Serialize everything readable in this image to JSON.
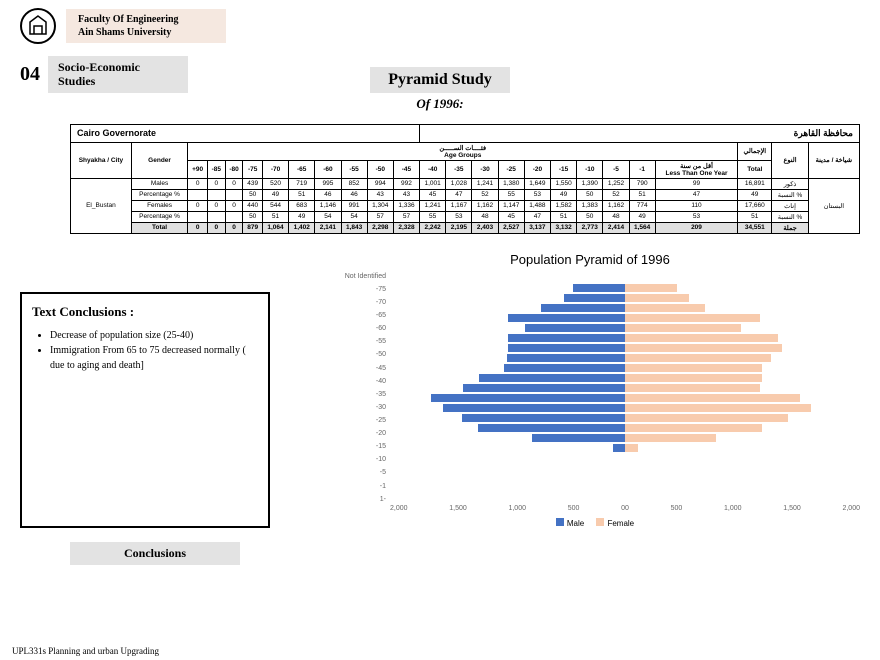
{
  "header": {
    "line1": "Faculty Of Engineering",
    "line2": "Ain Shams University"
  },
  "section": {
    "num": "04",
    "title1": "Socio-Economic",
    "title2": "Studies"
  },
  "main": {
    "title": "Pyramid Study",
    "subtitle": "Of 1996:"
  },
  "table": {
    "gov_en": "Cairo Governorate",
    "gov_ar": "محافظة القاهرة",
    "h_shyakha": "Shyakha / City",
    "h_gender": "Gender",
    "h_agegroups": "Age Groups",
    "h_agegroups_ar": "فئــــات الســـــن",
    "h_total_ar": "الإجمالي",
    "h_gender_ar": "النوع",
    "h_shyakha_ar": "شياخة / مدينة",
    "h_total": "Total",
    "h_less": "Less Than One Year",
    "h_less_ar": "أقل من سنة",
    "age_cols": [
      "+90",
      "-85",
      "-80",
      "-75",
      "-70",
      "-65",
      "-60",
      "-55",
      "-50",
      "-45",
      "-40",
      "-35",
      "-30",
      "-25",
      "-20",
      "-15",
      "-10",
      "-5",
      "-1"
    ],
    "city": "El_Bustan",
    "city_ar": "البستان",
    "rows": [
      {
        "label": "Males",
        "label_ar": "ذكور",
        "data": [
          "0",
          "0",
          "0",
          "439",
          "520",
          "719",
          "995",
          "852",
          "994",
          "992",
          "1,001",
          "1,028",
          "1,241",
          "1,380",
          "1,649",
          "1,550",
          "1,390",
          "1,252",
          "790"
        ],
        "less": "99",
        "total": "16,891"
      },
      {
        "label": "Percentage %",
        "label_ar": "النسبة %",
        "data": [
          "",
          "",
          "",
          "50",
          "49",
          "51",
          "46",
          "46",
          "43",
          "43",
          "45",
          "47",
          "52",
          "55",
          "53",
          "49",
          "50",
          "52",
          "51"
        ],
        "less": "47",
        "total": "49"
      },
      {
        "label": "Females",
        "label_ar": "إناث",
        "data": [
          "0",
          "0",
          "0",
          "440",
          "544",
          "683",
          "1,146",
          "991",
          "1,304",
          "1,336",
          "1,241",
          "1,167",
          "1,162",
          "1,147",
          "1,488",
          "1,582",
          "1,383",
          "1,162",
          "774"
        ],
        "less": "110",
        "total": "17,660"
      },
      {
        "label": "Percentage %",
        "label_ar": "النسبة %",
        "data": [
          "",
          "",
          "",
          "50",
          "51",
          "49",
          "54",
          "54",
          "57",
          "57",
          "55",
          "53",
          "48",
          "45",
          "47",
          "51",
          "50",
          "48",
          "49"
        ],
        "less": "53",
        "total": "51"
      },
      {
        "label": "Total",
        "label_ar": "جملة",
        "data": [
          "0",
          "0",
          "0",
          "879",
          "1,064",
          "1,402",
          "2,141",
          "1,843",
          "2,298",
          "2,328",
          "2,242",
          "2,195",
          "2,403",
          "2,527",
          "3,137",
          "3,132",
          "2,773",
          "2,414",
          "1,564"
        ],
        "less": "209",
        "total": "34,551",
        "is_total": true
      }
    ]
  },
  "pyramid": {
    "title": "Population Pyramid of 1996",
    "male_color": "#4472c4",
    "female_color": "#f8cbad",
    "max": 2000,
    "y_labels": [
      "Not Identified",
      "-75",
      "-70",
      "-65",
      "-60",
      "-55",
      "-50",
      "-45",
      "-40",
      "-35",
      "-30",
      "-25",
      "-20",
      "-15",
      "-10",
      "-5",
      "-1",
      "1-"
    ],
    "bars": [
      {
        "m": 0,
        "f": 0
      },
      {
        "m": 439,
        "f": 440
      },
      {
        "m": 520,
        "f": 544
      },
      {
        "m": 719,
        "f": 683
      },
      {
        "m": 995,
        "f": 1146
      },
      {
        "m": 852,
        "f": 991
      },
      {
        "m": 994,
        "f": 1304
      },
      {
        "m": 992,
        "f": 1336
      },
      {
        "m": 1001,
        "f": 1241
      },
      {
        "m": 1028,
        "f": 1167
      },
      {
        "m": 1241,
        "f": 1162
      },
      {
        "m": 1380,
        "f": 1147
      },
      {
        "m": 1649,
        "f": 1488
      },
      {
        "m": 1550,
        "f": 1582
      },
      {
        "m": 1390,
        "f": 1383
      },
      {
        "m": 1252,
        "f": 1162
      },
      {
        "m": 790,
        "f": 774
      },
      {
        "m": 99,
        "f": 110
      }
    ],
    "x_ticks_left": [
      "2,000",
      "1,500",
      "1,000",
      "500",
      "0"
    ],
    "x_ticks_right": [
      "0",
      "500",
      "1,000",
      "1,500",
      "2,000"
    ],
    "legend_male": "Male",
    "legend_female": "Female"
  },
  "conclusions": {
    "heading": "Text Conclusions :",
    "items": [
      "Decrease of population size (25-40)",
      "Immigration From 65 to 75 decreased normally ( due to aging and death]"
    ],
    "label": "Conclusions"
  },
  "footer": "UPL331s Planning and urban Upgrading"
}
